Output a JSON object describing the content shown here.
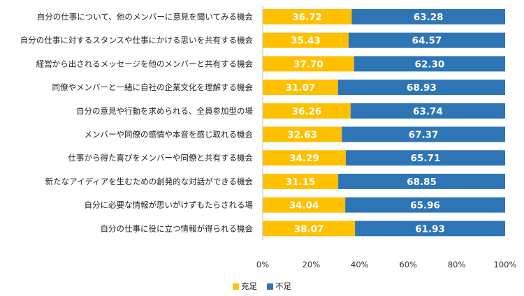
{
  "chart_data": {
    "type": "bar",
    "orientation": "horizontal",
    "stacked": true,
    "categories": [
      "自分の仕事について、他のメンバーに意見を聞いてみる機会",
      "自分の仕事に対するスタンスや仕事にかける思いを共有する機会",
      "経営から出されるメッセージを他のメンバーと共有する機会",
      "同僚やメンバーと一緒に自社の企業文化を理解する機会",
      "自分の意見や行動を求められる、全員参加型の場",
      "メンバーや同僚の感情や本音を感じ取れる機会",
      "仕事から得た喜びをメンバーや同僚と共有する機会",
      "新たなアイディアを生むための創発的な対話ができる機会",
      "自分に必要な情報が思いがけずもたらされる場",
      "自分の仕事に役に立つ情報が得られる機会"
    ],
    "series": [
      {
        "name": "充足",
        "color": "#FFC000",
        "values": [
          36.72,
          35.43,
          37.7,
          31.07,
          36.26,
          32.63,
          34.29,
          31.15,
          34.04,
          38.07
        ],
        "labels": [
          "36.72",
          "35.43",
          "37.70",
          "31.07",
          "36.26",
          "32.63",
          "34.29",
          "31.15",
          "34.04",
          "38.07"
        ]
      },
      {
        "name": "不足",
        "color": "#2E75B6",
        "values": [
          63.28,
          64.57,
          62.3,
          68.93,
          63.74,
          67.37,
          65.71,
          68.85,
          65.96,
          61.93
        ],
        "labels": [
          "63.28",
          "64.57",
          "62.30",
          "68.93",
          "63.74",
          "67.37",
          "65.71",
          "68.85",
          "65.96",
          "61.93"
        ]
      }
    ],
    "xlim": [
      0,
      100
    ],
    "x_ticks": [
      0,
      20,
      40,
      60,
      80,
      100
    ],
    "x_tick_labels": [
      "0%",
      "20%",
      "40%",
      "60%",
      "80%",
      "100%"
    ],
    "grid": false,
    "legend_position": "bottom-center"
  }
}
